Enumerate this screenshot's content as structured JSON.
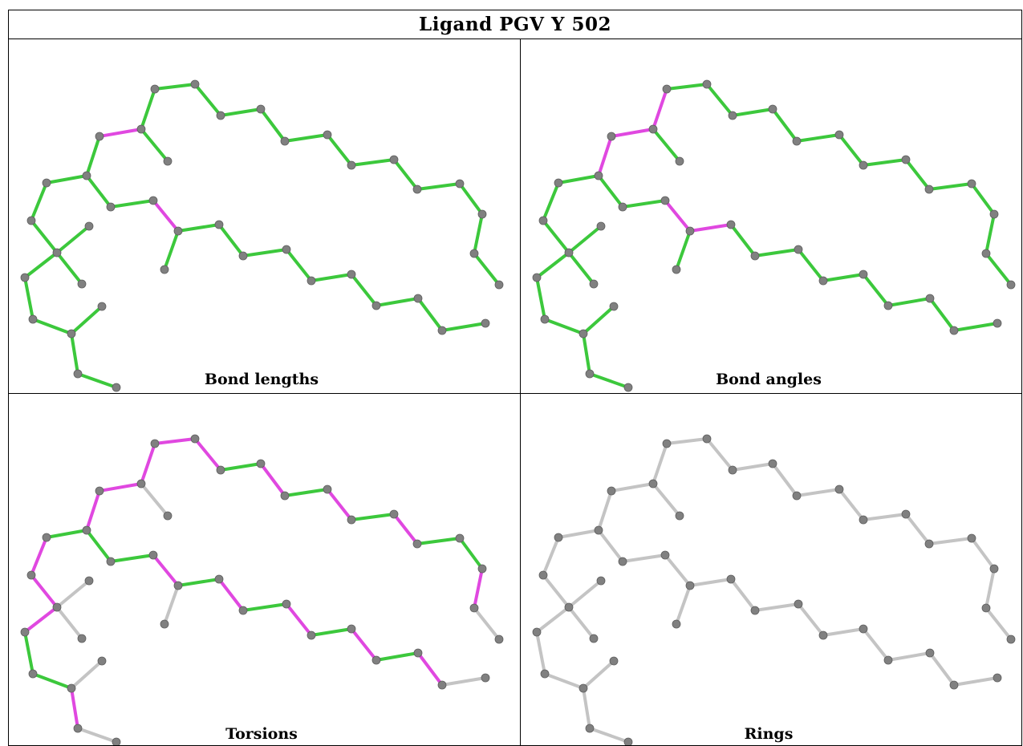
{
  "title": "Ligand PGV Y 502",
  "colors": {
    "outlier": "#e048e0",
    "ok": "#3cc83c",
    "neutral": "#c4c4c4",
    "atom": "#808080"
  },
  "panels": [
    {
      "key": "lengths",
      "caption": "Bond lengths"
    },
    {
      "key": "angles",
      "caption": "Bond angles"
    },
    {
      "key": "torsions",
      "caption": "Torsions"
    },
    {
      "key": "rings",
      "caption": "Rings"
    }
  ]
}
